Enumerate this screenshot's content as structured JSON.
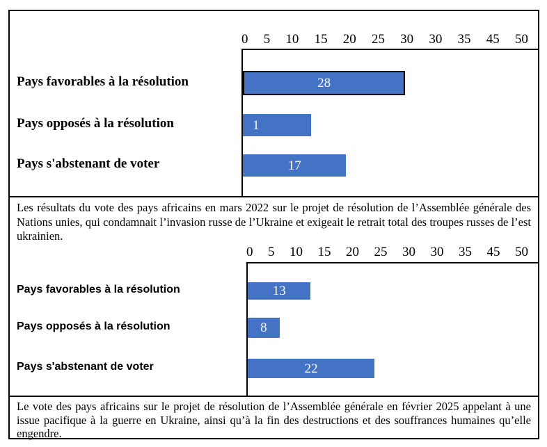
{
  "figure": {
    "bar_color": "#4472C4",
    "bar_outline_color": "#000000",
    "background_color": "#FFFFFF",
    "border_color": "#000000"
  },
  "chart_data": [
    {
      "type": "bar",
      "orientation": "horizontal",
      "title": "",
      "xlabel": "",
      "ylabel": "",
      "xlim": [
        0,
        50
      ],
      "grid": false,
      "legend": false,
      "axis_ticks": [
        "0",
        "5",
        "10",
        "15",
        "20",
        "25",
        "30",
        "30",
        "35",
        "45",
        "50"
      ],
      "categories": [
        "Pays favorables à la résolution",
        "Pays opposés à la résolution",
        "Pays s'abstenant de voter"
      ],
      "values": [
        28,
        1,
        17
      ],
      "value_labels": [
        "28",
        "1",
        "17"
      ],
      "value_label_align": [
        "center",
        "left",
        "center"
      ],
      "bar_display_pct": [
        55,
        23,
        35
      ],
      "bar_outlined": [
        true,
        false,
        false
      ]
    },
    {
      "type": "bar",
      "orientation": "horizontal",
      "title": "",
      "xlabel": "",
      "ylabel": "",
      "xlim": [
        0,
        50
      ],
      "grid": false,
      "legend": false,
      "axis_ticks": [
        "0",
        "5",
        "10",
        "15",
        "20",
        "25",
        "30",
        "30",
        "35",
        "45",
        "50"
      ],
      "categories": [
        "Pays favorables à la résolution",
        "Pays opposés à la résolution",
        "Pays s'abstenant de voter"
      ],
      "values": [
        13,
        8,
        22
      ],
      "value_labels": [
        "13",
        "8",
        "22"
      ],
      "value_label_align": [
        "center",
        "center",
        "center"
      ],
      "bar_display_pct": [
        21.7,
        11,
        43.7
      ],
      "bar_outlined": [
        false,
        false,
        false
      ]
    }
  ],
  "captions": [
    {
      "text": "Les résultats du vote des pays africains en mars 2022 sur le projet de résolution de l’Assemblée générale des Nations unies, qui condamnait l’invasion russe de l’Ukraine et exigeait le retrait total des troupes russes de l’est ukrainien."
    },
    {
      "text": "Le vote des pays africains sur le projet de résolution de l’Assemblée générale en février 2025 appelant à une issue pacifique à la guerre en Ukraine, ainsi qu’à la fin des destructions et des souffrances humaines qu’elle engendre."
    }
  ]
}
